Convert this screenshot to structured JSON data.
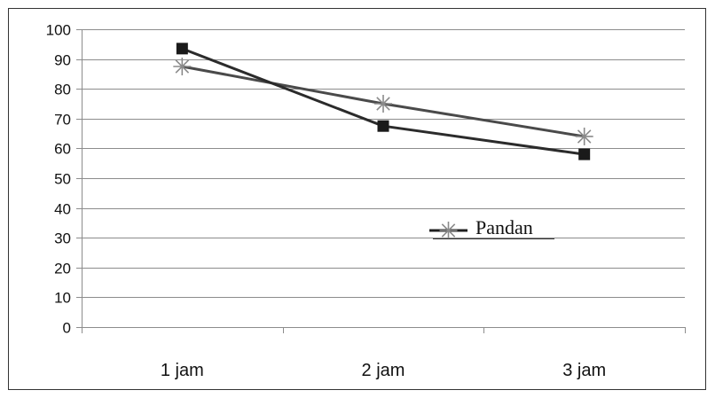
{
  "chart_data": {
    "type": "line",
    "categories": [
      "1 jam",
      "2 jam",
      "3 jam"
    ],
    "series": [
      {
        "name": "",
        "marker": "square",
        "values": [
          93.5,
          67.5,
          58
        ],
        "color": "#2b2b2b",
        "marker_color": "#1a1a1a"
      },
      {
        "name": "Pandan",
        "marker": "star",
        "values": [
          87.5,
          75,
          64
        ],
        "color": "#4a4a4a",
        "marker_color": "#8a8a8a"
      }
    ],
    "ylim": [
      0,
      100
    ],
    "yticks": [
      "0",
      "10",
      "20",
      "30",
      "40",
      "50",
      "60",
      "70",
      "80",
      "90",
      "100"
    ],
    "grid": true,
    "legend": {
      "position": "center-right",
      "label": "Pandan"
    },
    "title": "",
    "xlabel": "",
    "ylabel": ""
  }
}
